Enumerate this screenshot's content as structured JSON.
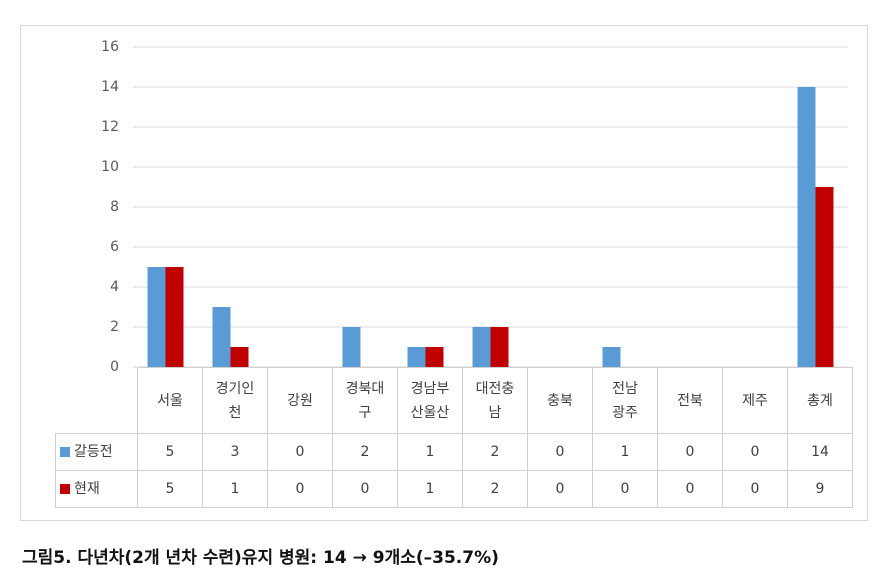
{
  "chart_data": {
    "type": "bar",
    "categories": [
      "서울",
      "경기인\n천",
      "강원",
      "경북대\n구",
      "경남부\n산울산",
      "대전충\n남",
      "충북",
      "전남\n광주",
      "전북",
      "제주",
      "총계"
    ],
    "series": [
      {
        "name": "갈등전",
        "color": "#5b9bd5",
        "values": [
          5,
          3,
          0,
          2,
          1,
          2,
          0,
          1,
          0,
          0,
          14
        ]
      },
      {
        "name": "현재",
        "color": "#c00000",
        "values": [
          5,
          1,
          0,
          0,
          1,
          2,
          0,
          0,
          0,
          0,
          9
        ]
      }
    ],
    "ylim": [
      0,
      16
    ],
    "yticks": [
      0,
      2,
      4,
      6,
      8,
      10,
      12,
      14,
      16
    ],
    "grid": true,
    "caption": "그림5. 다년차(2개 년차 수련)유지 병원: 14 → 9개소(–35.7%)"
  }
}
